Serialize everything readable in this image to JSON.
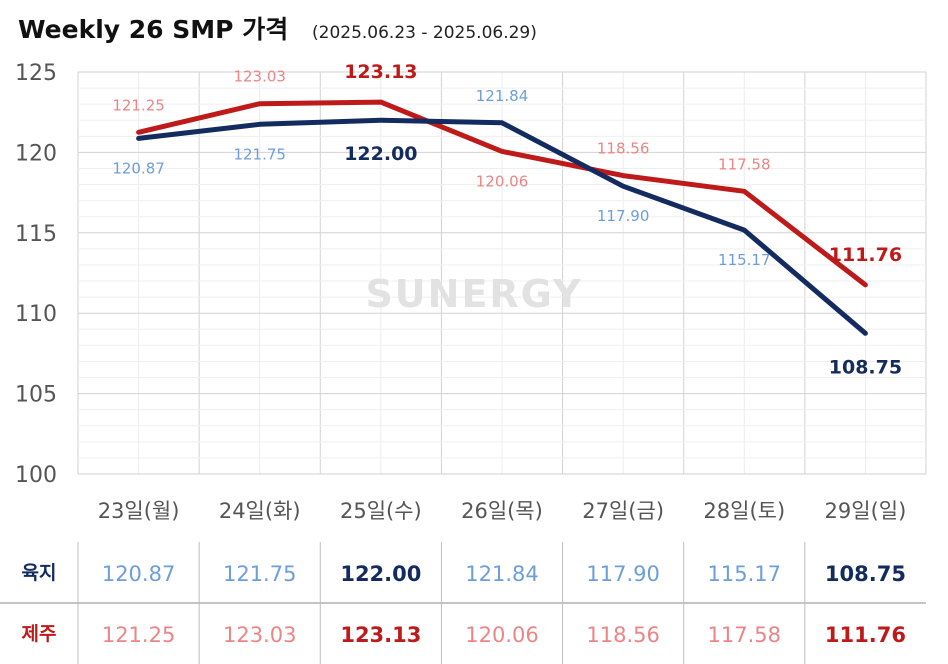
{
  "title": {
    "main": "Weekly 26 SMP 가격",
    "period": "(2025.06.23 - 2025.06.29)"
  },
  "watermark": "SUNERGY",
  "colors": {
    "mainland_line": "#132B5E",
    "mainland_label": "#6D9EDB",
    "jeju_line": "#BF1A1A",
    "jeju_label": "#EC8585",
    "grid": "#dcdcdc",
    "axis_text": "#555555",
    "table_border": "#888888",
    "watermark": "#e2e2e2"
  },
  "chart_data": {
    "type": "line",
    "title": "Weekly 26 SMP 가격",
    "subtitle": "(2025.06.23 - 2025.06.29)",
    "categories": [
      "23일(월)",
      "24일(화)",
      "25일(수)",
      "26일(목)",
      "27일(금)",
      "28일(토)",
      "29일(일)"
    ],
    "ylim": [
      100,
      125
    ],
    "yticks": [
      100,
      105,
      110,
      115,
      120,
      125
    ],
    "grid": true,
    "series": [
      {
        "name": "육지",
        "values": [
          120.87,
          121.75,
          122.0,
          121.84,
          117.9,
          115.17,
          108.75
        ],
        "labels": [
          "120.87",
          "121.75",
          "122.00",
          "121.84",
          "117.90",
          "115.17",
          "108.75"
        ],
        "emphasized_index": [
          2,
          6
        ],
        "label_position": [
          "below",
          "below",
          "below",
          "above",
          "below",
          "below",
          "below"
        ]
      },
      {
        "name": "제주",
        "values": [
          121.25,
          123.03,
          123.13,
          120.06,
          118.56,
          117.58,
          111.76
        ],
        "labels": [
          "121.25",
          "123.03",
          "123.13",
          "120.06",
          "118.56",
          "117.58",
          "111.76"
        ],
        "emphasized_index": [
          2,
          6
        ],
        "label_position": [
          "above",
          "above",
          "above",
          "below",
          "above",
          "above",
          "above"
        ]
      }
    ]
  },
  "table": {
    "rows": [
      {
        "name": "육지",
        "values": [
          "120.87",
          "121.75",
          "122.00",
          "121.84",
          "117.90",
          "115.17",
          "108.75"
        ]
      },
      {
        "name": "제주",
        "values": [
          "121.25",
          "123.03",
          "123.13",
          "120.06",
          "118.56",
          "117.58",
          "111.76"
        ]
      }
    ]
  }
}
